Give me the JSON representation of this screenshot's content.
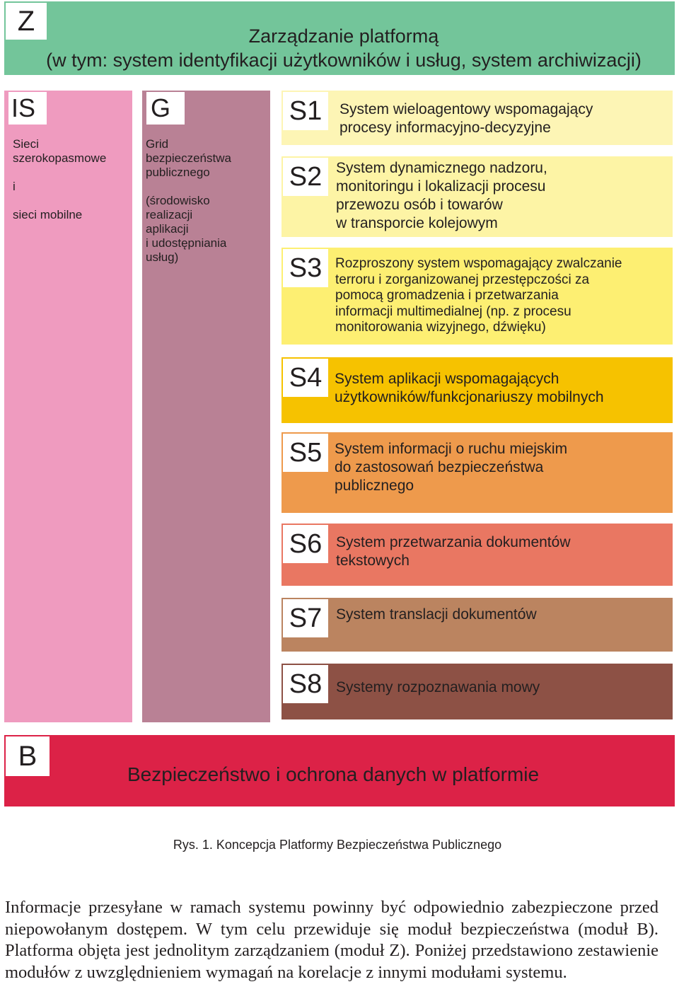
{
  "z": {
    "label": "Z",
    "text": "Zarządzanie platformą\n(w tym: system identyfikacji użytkowników i usług, system archiwizacji)",
    "color": "#73c59a"
  },
  "is": {
    "label": "IS",
    "text": "Sieci\nszerokopasmowe\n\ni\n\nsieci mobilne",
    "color": "#ef9bbf"
  },
  "g": {
    "label": "G",
    "text": "Grid\nbezpieczeństwa\npublicznego\n\n(środowisko\nrealizacji\naplikacji\ni udostępniania\nusług)",
    "color": "#b98195"
  },
  "systems": [
    {
      "label": "S1",
      "text": "System wieloagentowy wspomagający\nprocesy informacyjno-decyzyjne",
      "color": "#fdf5b5"
    },
    {
      "label": "S2",
      "text": "System dynamicznego nadzoru,\nmonitoringu i lokalizacji procesu\nprzewozu osób i towarów\nw transporcie kolejowym",
      "color": "#fdf4a5"
    },
    {
      "label": "S3",
      "text": "Rozproszony system wspomagający zwalczanie\nterroru i zorganizowanej przestępczości za\npomocą gromadzenia i przetwarzania\ninformacji multimedialnej (np. z procesu\nmonitorowania wizyjnego, dźwięku)",
      "color": "#fdef72"
    },
    {
      "label": "S4",
      "text": "System aplikacji wspomagających\nużytkowników/funkcjonariuszy mobilnych",
      "color": "#f6c200"
    },
    {
      "label": "S5",
      "text": "System informacji o ruchu miejskim\ndo zastosowań bezpieczeństwa\npublicznego",
      "color": "#ee9a4c"
    },
    {
      "label": "S6",
      "text": "System przetwarzania dokumentów\ntekstowych",
      "color": "#e97762"
    },
    {
      "label": "S7",
      "text": "System translacji dokumentów",
      "color": "#bb8460"
    },
    {
      "label": "S8",
      "text": "Systemy rozpoznawania mowy",
      "color": "#8d5145"
    }
  ],
  "b": {
    "label": "B",
    "text": "Bezpieczeństwo i ochrona danych w platformie",
    "color": "#dc2247"
  },
  "caption": "Rys. 1. Koncepcja Platformy Bezpieczeństwa Publicznego",
  "paragraph": "Informacje przesyłane w ramach systemu powinny być odpowiednio zabezpieczone przed niepowołanym dostępem. W tym celu przewiduje się moduł bezpieczeństwa (moduł B). Platforma objęta jest jednolitym zarządzaniem (moduł Z). Poniżej przedstawiono zestawienie modułów z uwzględnieniem wymagań na korelacje z innymi modułami systemu."
}
